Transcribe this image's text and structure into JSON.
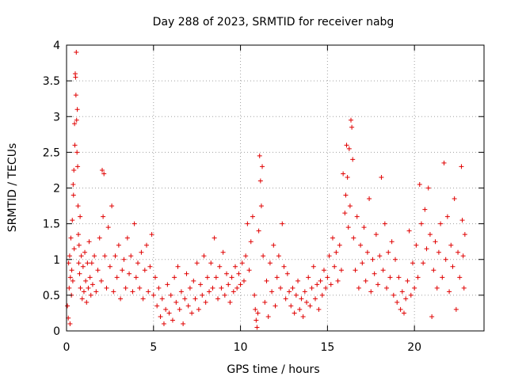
{
  "chart_data": {
    "type": "scatter",
    "title": "Day 288 of 2023, SRMTID for receiver nabg",
    "xlabel": "GPS time / hours",
    "ylabel": "SRMTID / TECUs",
    "xlim": [
      0,
      24
    ],
    "ylim": [
      0,
      4
    ],
    "xticks": [
      0,
      5,
      10,
      15,
      20
    ],
    "xtick_labels": [
      "0",
      "5",
      "10",
      "15",
      "20"
    ],
    "yticks": [
      0,
      0.5,
      1,
      1.5,
      2,
      2.5,
      3,
      3.5,
      4
    ],
    "ytick_labels": [
      "0",
      "0.5",
      "1",
      "1.5",
      "2",
      "2.5",
      "3",
      "3.5",
      "4"
    ],
    "grid": true,
    "marker": "+",
    "series": [
      {
        "name": "SRMTID",
        "color": "#e00000",
        "points": [
          [
            0.05,
            0.35
          ],
          [
            0.1,
            0.18
          ],
          [
            0.12,
            0.95
          ],
          [
            0.15,
            0.6
          ],
          [
            0.18,
            1.05
          ],
          [
            0.2,
            0.1
          ],
          [
            0.22,
            0.75
          ],
          [
            0.25,
            1.3
          ],
          [
            0.28,
            0.5
          ],
          [
            0.3,
            0.85
          ],
          [
            0.33,
            1.55
          ],
          [
            0.36,
            0.7
          ],
          [
            0.38,
            2.05
          ],
          [
            0.4,
            1.9
          ],
          [
            0.42,
            2.25
          ],
          [
            0.44,
            1.15
          ],
          [
            0.46,
            2.9
          ],
          [
            0.48,
            2.6
          ],
          [
            0.5,
            3.6
          ],
          [
            0.52,
            3.55
          ],
          [
            0.54,
            3.3
          ],
          [
            0.56,
            3.9
          ],
          [
            0.58,
            2.95
          ],
          [
            0.6,
            2.5
          ],
          [
            0.62,
            3.1
          ],
          [
            0.64,
            2.3
          ],
          [
            0.66,
            1.75
          ],
          [
            0.68,
            1.35
          ],
          [
            0.7,
            0.95
          ],
          [
            0.72,
            1.2
          ],
          [
            0.75,
            0.8
          ],
          [
            0.78,
            1.6
          ],
          [
            0.8,
            0.6
          ],
          [
            0.85,
            1.05
          ],
          [
            0.9,
            0.45
          ],
          [
            0.95,
            0.9
          ],
          [
            1.0,
            0.55
          ],
          [
            1.05,
            1.1
          ],
          [
            1.1,
            0.7
          ],
          [
            1.15,
            0.4
          ],
          [
            1.2,
            0.95
          ],
          [
            1.25,
            0.6
          ],
          [
            1.3,
            1.25
          ],
          [
            1.35,
            0.75
          ],
          [
            1.4,
            0.5
          ],
          [
            1.45,
            0.95
          ],
          [
            1.5,
            0.65
          ],
          [
            1.6,
            1.05
          ],
          [
            1.7,
            0.55
          ],
          [
            1.8,
            0.85
          ],
          [
            1.9,
            1.3
          ],
          [
            2.0,
            0.7
          ],
          [
            2.05,
            2.25
          ],
          [
            2.1,
            1.6
          ],
          [
            2.15,
            2.2
          ],
          [
            2.2,
            1.05
          ],
          [
            2.3,
            0.6
          ],
          [
            2.4,
            1.45
          ],
          [
            2.5,
            0.9
          ],
          [
            2.6,
            1.75
          ],
          [
            2.7,
            0.55
          ],
          [
            2.8,
            1.05
          ],
          [
            2.9,
            0.75
          ],
          [
            3.0,
            1.2
          ],
          [
            3.1,
            0.45
          ],
          [
            3.2,
            0.85
          ],
          [
            3.3,
            1.0
          ],
          [
            3.4,
            0.6
          ],
          [
            3.5,
            1.3
          ],
          [
            3.6,
            0.8
          ],
          [
            3.7,
            1.05
          ],
          [
            3.8,
            0.55
          ],
          [
            3.9,
            1.5
          ],
          [
            4.0,
            0.75
          ],
          [
            4.1,
            0.95
          ],
          [
            4.2,
            0.6
          ],
          [
            4.3,
            1.1
          ],
          [
            4.4,
            0.45
          ],
          [
            4.5,
            0.85
          ],
          [
            4.6,
            1.2
          ],
          [
            4.7,
            0.55
          ],
          [
            4.8,
            0.9
          ],
          [
            4.9,
            1.35
          ],
          [
            5.0,
            0.5
          ],
          [
            5.1,
            0.75
          ],
          [
            5.2,
            0.35
          ],
          [
            5.3,
            0.6
          ],
          [
            5.4,
            0.2
          ],
          [
            5.5,
            0.45
          ],
          [
            5.6,
            0.1
          ],
          [
            5.7,
            0.3
          ],
          [
            5.8,
            0.65
          ],
          [
            5.9,
            0.25
          ],
          [
            6.0,
            0.5
          ],
          [
            6.1,
            0.15
          ],
          [
            6.2,
            0.75
          ],
          [
            6.3,
            0.4
          ],
          [
            6.4,
            0.9
          ],
          [
            6.5,
            0.3
          ],
          [
            6.6,
            0.55
          ],
          [
            6.7,
            0.1
          ],
          [
            6.8,
            0.45
          ],
          [
            6.9,
            0.8
          ],
          [
            7.0,
            0.35
          ],
          [
            7.1,
            0.6
          ],
          [
            7.2,
            0.25
          ],
          [
            7.3,
            0.7
          ],
          [
            7.4,
            0.45
          ],
          [
            7.5,
            0.95
          ],
          [
            7.6,
            0.3
          ],
          [
            7.7,
            0.65
          ],
          [
            7.8,
            0.5
          ],
          [
            7.9,
            1.05
          ],
          [
            8.0,
            0.4
          ],
          [
            8.1,
            0.75
          ],
          [
            8.2,
            0.55
          ],
          [
            8.3,
            0.95
          ],
          [
            8.4,
            0.6
          ],
          [
            8.5,
            1.3
          ],
          [
            8.6,
            0.75
          ],
          [
            8.7,
            0.45
          ],
          [
            8.8,
            0.9
          ],
          [
            8.9,
            0.6
          ],
          [
            9.0,
            1.1
          ],
          [
            9.1,
            0.5
          ],
          [
            9.2,
            0.8
          ],
          [
            9.3,
            0.65
          ],
          [
            9.4,
            0.4
          ],
          [
            9.5,
            0.75
          ],
          [
            9.6,
            0.55
          ],
          [
            9.7,
            0.9
          ],
          [
            9.8,
            0.6
          ],
          [
            9.9,
            0.8
          ],
          [
            10.0,
            0.65
          ],
          [
            10.1,
            0.95
          ],
          [
            10.2,
            0.7
          ],
          [
            10.3,
            1.05
          ],
          [
            10.4,
            1.5
          ],
          [
            10.5,
            0.85
          ],
          [
            10.6,
            1.25
          ],
          [
            10.7,
            1.6
          ],
          [
            10.8,
            0.5
          ],
          [
            10.85,
            0.3
          ],
          [
            10.9,
            0.15
          ],
          [
            10.95,
            0.05
          ],
          [
            11.0,
            0.25
          ],
          [
            11.05,
            1.4
          ],
          [
            11.1,
            2.45
          ],
          [
            11.15,
            2.1
          ],
          [
            11.2,
            1.75
          ],
          [
            11.25,
            2.3
          ],
          [
            11.3,
            1.05
          ],
          [
            11.4,
            0.4
          ],
          [
            11.5,
            0.7
          ],
          [
            11.6,
            0.2
          ],
          [
            11.7,
            0.95
          ],
          [
            11.8,
            0.55
          ],
          [
            11.9,
            1.2
          ],
          [
            12.0,
            0.35
          ],
          [
            12.1,
            0.75
          ],
          [
            12.2,
            1.05
          ],
          [
            12.3,
            0.6
          ],
          [
            12.4,
            1.5
          ],
          [
            12.5,
            0.9
          ],
          [
            12.6,
            0.45
          ],
          [
            12.7,
            0.8
          ],
          [
            12.8,
            0.55
          ],
          [
            12.9,
            0.35
          ],
          [
            13.0,
            0.6
          ],
          [
            13.1,
            0.25
          ],
          [
            13.2,
            0.5
          ],
          [
            13.3,
            0.7
          ],
          [
            13.4,
            0.3
          ],
          [
            13.5,
            0.45
          ],
          [
            13.6,
            0.2
          ],
          [
            13.7,
            0.55
          ],
          [
            13.8,
            0.4
          ],
          [
            13.9,
            0.75
          ],
          [
            14.0,
            0.35
          ],
          [
            14.1,
            0.6
          ],
          [
            14.2,
            0.9
          ],
          [
            14.3,
            0.45
          ],
          [
            14.4,
            0.65
          ],
          [
            14.5,
            0.3
          ],
          [
            14.6,
            0.7
          ],
          [
            14.7,
            0.5
          ],
          [
            14.8,
            0.85
          ],
          [
            14.9,
            0.6
          ],
          [
            15.0,
            0.75
          ],
          [
            15.1,
            1.05
          ],
          [
            15.2,
            0.65
          ],
          [
            15.3,
            1.3
          ],
          [
            15.4,
            0.9
          ],
          [
            15.5,
            1.1
          ],
          [
            15.6,
            0.7
          ],
          [
            15.7,
            1.2
          ],
          [
            15.8,
            0.85
          ],
          [
            15.9,
            2.2
          ],
          [
            16.0,
            1.65
          ],
          [
            16.05,
            1.9
          ],
          [
            16.1,
            2.6
          ],
          [
            16.15,
            2.15
          ],
          [
            16.2,
            1.45
          ],
          [
            16.25,
            2.55
          ],
          [
            16.3,
            1.75
          ],
          [
            16.35,
            2.95
          ],
          [
            16.4,
            2.85
          ],
          [
            16.45,
            2.4
          ],
          [
            16.5,
            1.3
          ],
          [
            16.6,
            0.85
          ],
          [
            16.7,
            1.6
          ],
          [
            16.8,
            0.6
          ],
          [
            16.9,
            1.2
          ],
          [
            17.0,
            0.95
          ],
          [
            17.1,
            1.45
          ],
          [
            17.2,
            0.7
          ],
          [
            17.3,
            1.1
          ],
          [
            17.4,
            1.85
          ],
          [
            17.5,
            0.55
          ],
          [
            17.6,
            1.0
          ],
          [
            17.7,
            0.8
          ],
          [
            17.8,
            1.35
          ],
          [
            17.9,
            0.65
          ],
          [
            18.0,
            1.05
          ],
          [
            18.1,
            2.15
          ],
          [
            18.2,
            0.85
          ],
          [
            18.3,
            1.5
          ],
          [
            18.4,
            0.6
          ],
          [
            18.5,
            1.1
          ],
          [
            18.6,
            0.75
          ],
          [
            18.7,
            1.25
          ],
          [
            18.8,
            0.5
          ],
          [
            18.9,
            1.0
          ],
          [
            19.0,
            0.4
          ],
          [
            19.1,
            0.75
          ],
          [
            19.2,
            0.3
          ],
          [
            19.3,
            0.55
          ],
          [
            19.4,
            0.25
          ],
          [
            19.5,
            0.45
          ],
          [
            19.6,
            0.7
          ],
          [
            19.7,
            1.4
          ],
          [
            19.8,
            0.5
          ],
          [
            19.9,
            0.95
          ],
          [
            20.0,
            0.6
          ],
          [
            20.1,
            1.2
          ],
          [
            20.2,
            0.75
          ],
          [
            20.3,
            2.05
          ],
          [
            20.4,
            1.5
          ],
          [
            20.5,
            0.95
          ],
          [
            20.6,
            1.7
          ],
          [
            20.7,
            1.15
          ],
          [
            20.8,
            2.0
          ],
          [
            20.9,
            1.35
          ],
          [
            21.0,
            0.2
          ],
          [
            21.1,
            0.85
          ],
          [
            21.2,
            1.25
          ],
          [
            21.3,
            0.6
          ],
          [
            21.4,
            1.1
          ],
          [
            21.5,
            1.5
          ],
          [
            21.6,
            0.75
          ],
          [
            21.7,
            2.35
          ],
          [
            21.8,
            1.0
          ],
          [
            21.9,
            1.6
          ],
          [
            22.0,
            0.55
          ],
          [
            22.1,
            1.2
          ],
          [
            22.2,
            0.9
          ],
          [
            22.3,
            1.85
          ],
          [
            22.4,
            0.3
          ],
          [
            22.5,
            1.1
          ],
          [
            22.6,
            0.75
          ],
          [
            22.7,
            2.3
          ],
          [
            22.75,
            1.55
          ],
          [
            22.8,
            1.05
          ],
          [
            22.85,
            0.6
          ],
          [
            22.9,
            1.35
          ]
        ]
      }
    ]
  }
}
